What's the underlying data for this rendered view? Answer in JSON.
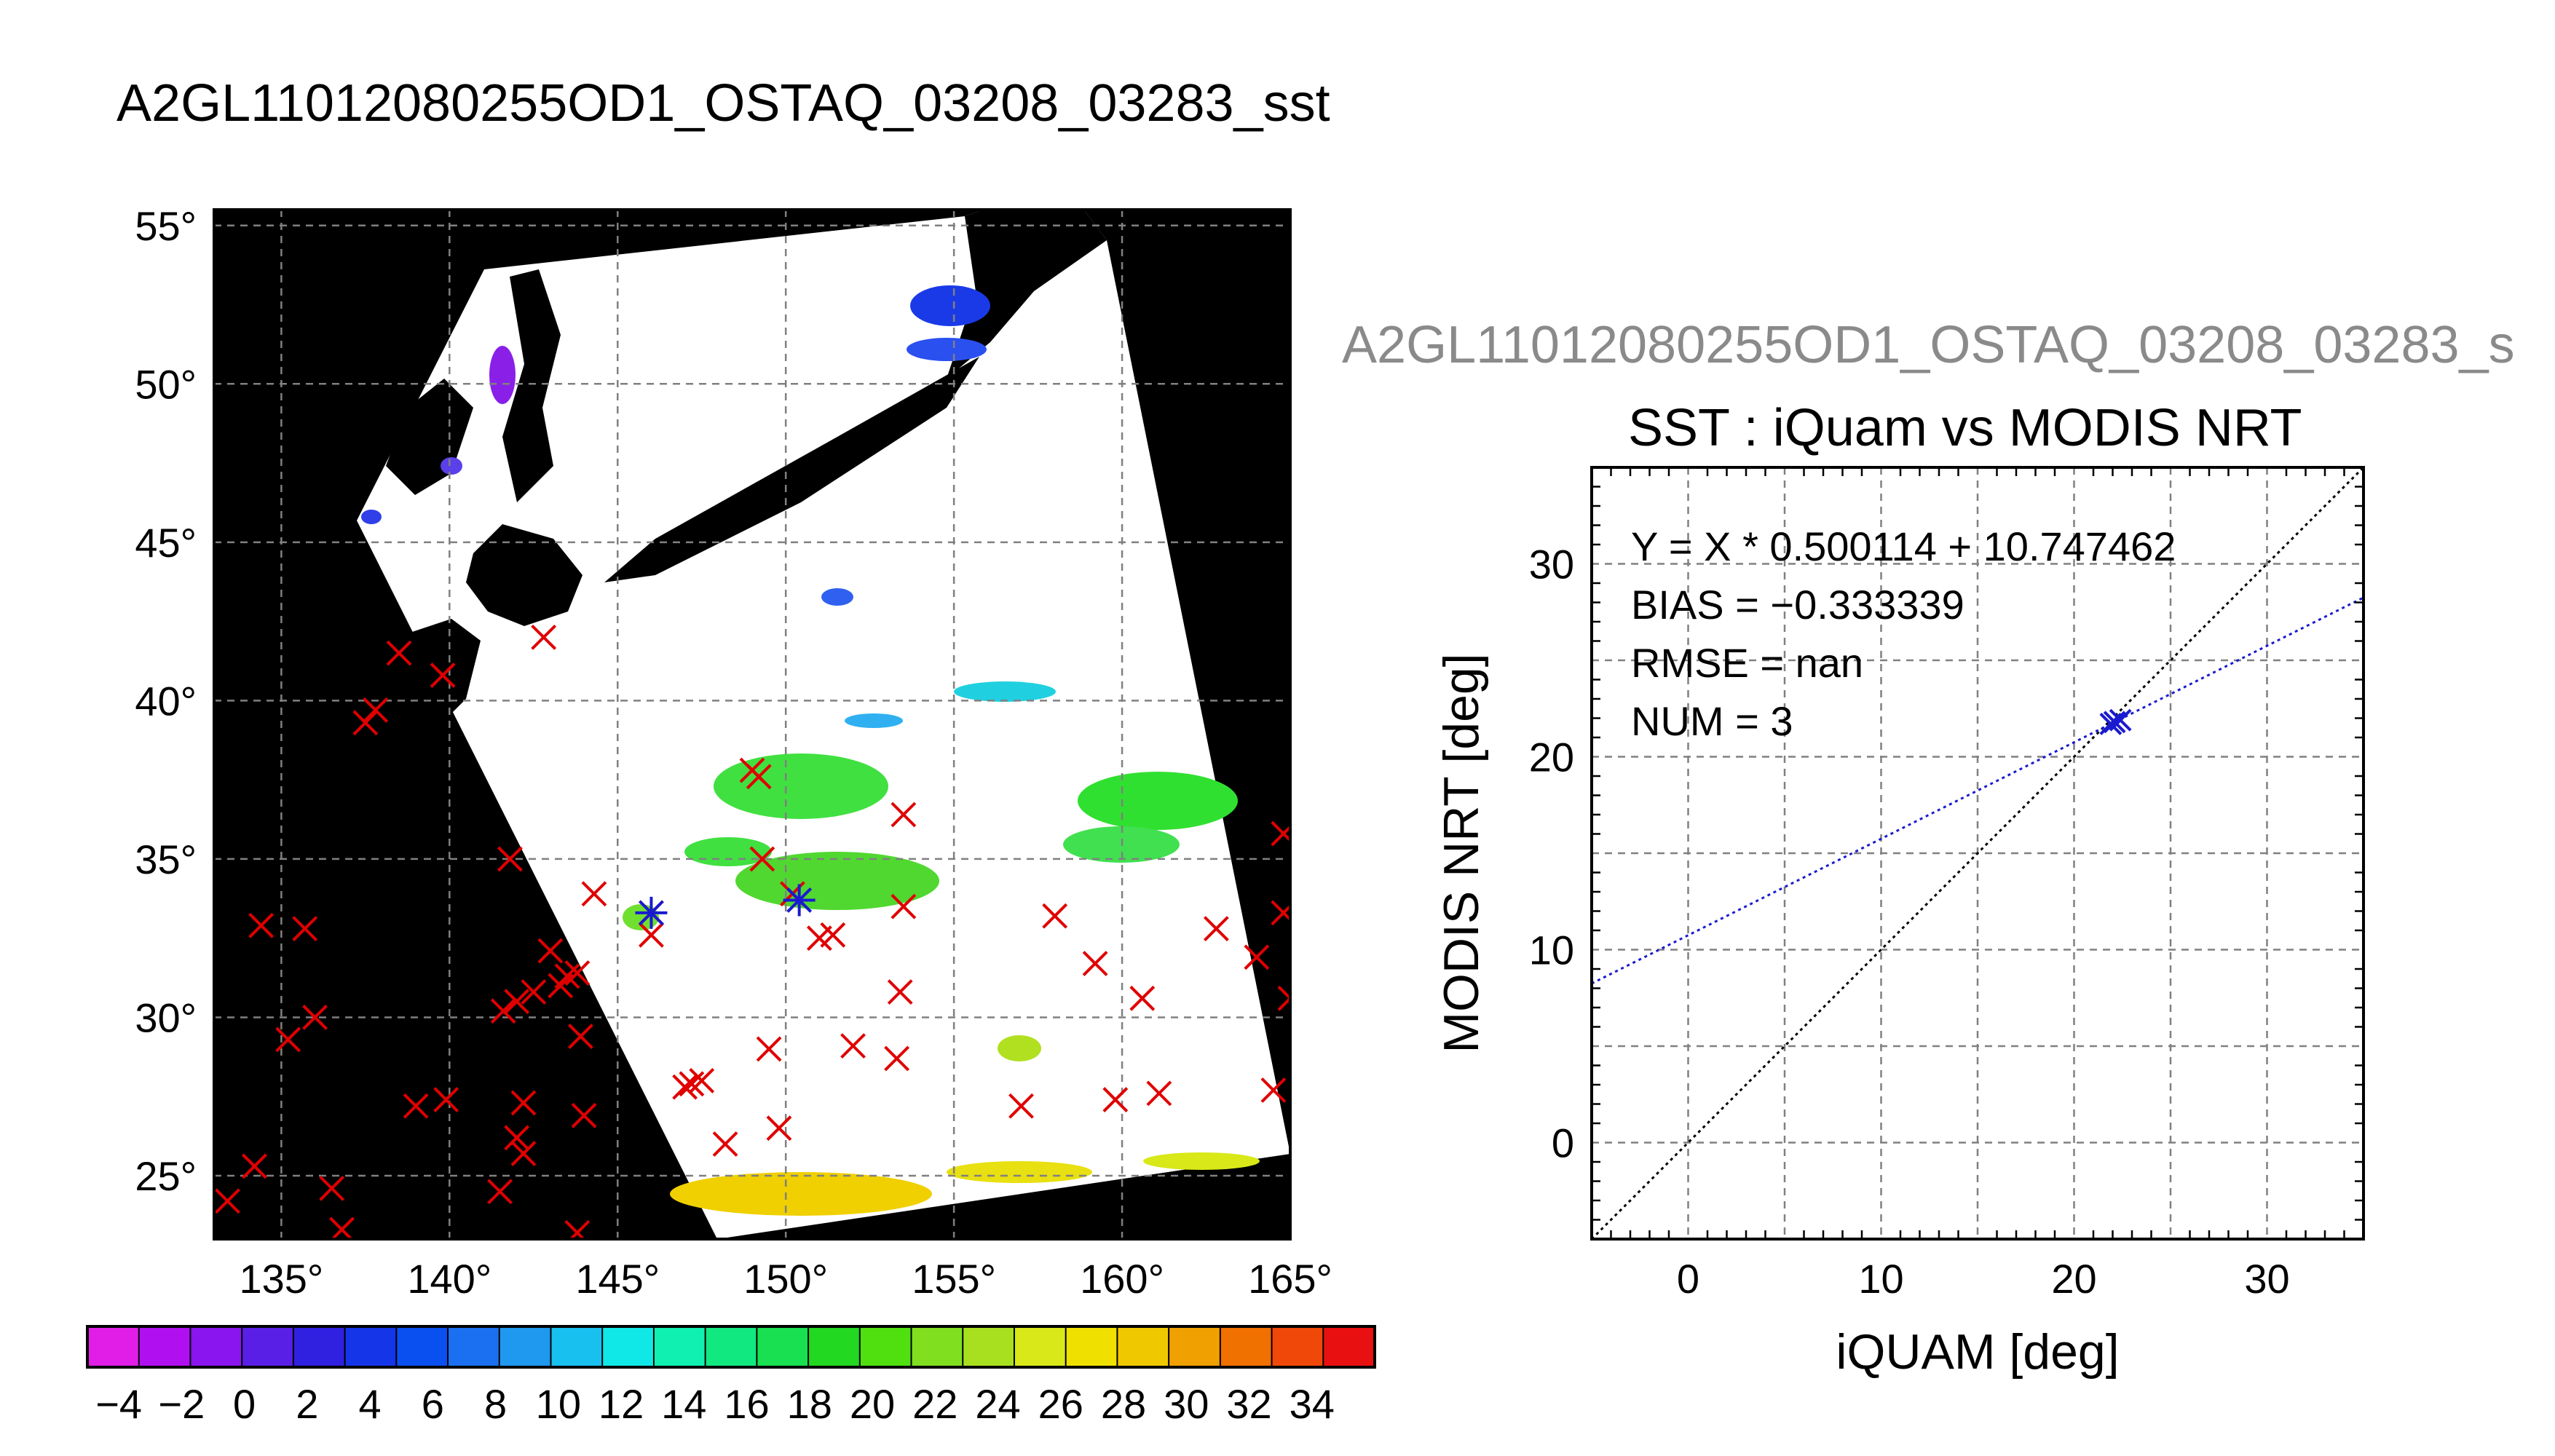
{
  "map": {
    "title": "A2GL11012080255OD1_OSTAQ_03208_03283_sst",
    "lat_labels": [
      "55°",
      "50°",
      "45°",
      "40°",
      "35°",
      "30°",
      "25°"
    ],
    "lon_labels": [
      "135°",
      "140°",
      "145°",
      "150°",
      "155°",
      "160°",
      "165°"
    ],
    "colorbar_labels": [
      "-4",
      "-2",
      "0",
      "2",
      "4",
      "6",
      "8",
      "10",
      "12",
      "14",
      "16",
      "18",
      "20",
      "22",
      "24",
      "26",
      "28",
      "30",
      "32",
      "34"
    ],
    "colorbar_colors": [
      "#e11ee8",
      "#b010f0",
      "#8a15ee",
      "#5a1fe6",
      "#3020e0",
      "#1535e8",
      "#0a50f0",
      "#1a70f0",
      "#1f98f0",
      "#18c0f0",
      "#10e8e8",
      "#10f0b0",
      "#12e880",
      "#18e050",
      "#22d820",
      "#50e010",
      "#80e020",
      "#a8e020",
      "#d8e818",
      "#f0e000",
      "#f0c800",
      "#f0a000",
      "#f07000",
      "#f04808",
      "#e81010"
    ],
    "lat_range": [
      23,
      55.5
    ],
    "lon_range": [
      133,
      165
    ]
  },
  "scatter": {
    "outer_title": "A2GL11012080255OD1_OSTAQ_03208_03283_s",
    "title": "SST : iQuam vs MODIS NRT",
    "annotations": [
      "Y = X * 0.500114 + 10.747462",
      "BIAS = −0.333339",
      "RMSE = nan",
      "NUM = 3"
    ]
  },
  "chart_data": [
    {
      "type": "scatter",
      "title": "A2GL11012080255OD1_OSTAQ_03208_03283_sst",
      "xlabel": "",
      "ylabel": "",
      "xlim": [
        133,
        165
      ],
      "ylim": [
        23,
        55.5
      ],
      "x_ticks": [
        135,
        140,
        145,
        150,
        155,
        160,
        165
      ],
      "y_ticks": [
        25,
        30,
        35,
        40,
        45,
        50,
        55
      ],
      "grid": true,
      "colorbar_ticks": [
        -4,
        -2,
        0,
        2,
        4,
        6,
        8,
        10,
        12,
        14,
        16,
        18,
        20,
        22,
        24,
        26,
        28,
        30,
        32,
        34
      ],
      "series": [
        {
          "name": "",
          "marker": "x",
          "color": "#e00000",
          "points": [
            [
              142.8,
              42.0
            ],
            [
              138.5,
              41.5
            ],
            [
              139.8,
              40.8
            ],
            [
              137.8,
              39.7
            ],
            [
              137.5,
              39.3
            ],
            [
              149.0,
              37.8
            ],
            [
              149.2,
              37.6
            ],
            [
              153.5,
              36.4
            ],
            [
              149.3,
              35.0
            ],
            [
              141.8,
              35.0
            ],
            [
              164.8,
              35.8
            ],
            [
              144.3,
              33.9
            ],
            [
              146.0,
              33.3
            ],
            [
              146.0,
              32.6
            ],
            [
              150.2,
              33.9
            ],
            [
              153.5,
              33.5
            ],
            [
              158.0,
              33.2
            ],
            [
              134.4,
              32.9
            ],
            [
              135.7,
              32.8
            ],
            [
              162.8,
              32.8
            ],
            [
              164.8,
              33.3
            ],
            [
              143.0,
              32.1
            ],
            [
              151.0,
              32.5
            ],
            [
              151.4,
              32.6
            ],
            [
              164.0,
              31.9
            ],
            [
              159.2,
              31.7
            ],
            [
              143.5,
              31.3
            ],
            [
              143.8,
              31.4
            ],
            [
              143.3,
              31.0
            ],
            [
              142.5,
              30.8
            ],
            [
              142.0,
              30.5
            ],
            [
              141.6,
              30.2
            ],
            [
              153.4,
              30.8
            ],
            [
              160.6,
              30.6
            ],
            [
              165.0,
              30.6
            ],
            [
              136.0,
              30.0
            ],
            [
              135.2,
              29.3
            ],
            [
              143.9,
              29.4
            ],
            [
              149.5,
              29.0
            ],
            [
              152.0,
              29.1
            ],
            [
              153.3,
              28.7
            ],
            [
              147.2,
              27.9
            ],
            [
              147.5,
              28.0
            ],
            [
              147.0,
              27.8
            ],
            [
              142.2,
              27.3
            ],
            [
              139.0,
              27.2
            ],
            [
              139.9,
              27.4
            ],
            [
              159.8,
              27.4
            ],
            [
              161.1,
              27.6
            ],
            [
              164.5,
              27.7
            ],
            [
              157.0,
              27.2
            ],
            [
              144.0,
              26.9
            ],
            [
              149.8,
              26.5
            ],
            [
              142.0,
              26.2
            ],
            [
              148.2,
              26.0
            ],
            [
              142.2,
              25.7
            ],
            [
              134.2,
              25.3
            ],
            [
              136.5,
              24.6
            ],
            [
              141.5,
              24.5
            ],
            [
              133.4,
              24.2
            ],
            [
              136.8,
              23.3
            ],
            [
              143.8,
              23.2
            ]
          ]
        },
        {
          "name": "",
          "marker": "x",
          "color": "#1a1ad0",
          "points": [
            [
              146.0,
              33.3
            ],
            [
              150.4,
              33.7
            ]
          ]
        }
      ]
    },
    {
      "type": "scatter",
      "title": "SST : iQuam vs MODIS NRT",
      "xlabel": "iQUAM [deg]",
      "ylabel": "MODIS NRT [deg]",
      "xlim": [
        -5,
        35
      ],
      "ylim": [
        -5,
        35
      ],
      "x_ticks": [
        0,
        10,
        20,
        30
      ],
      "y_ticks": [
        0,
        10,
        20,
        30
      ],
      "grid": true,
      "series": [
        {
          "name": "",
          "marker": "x",
          "color": "#1a1ad0",
          "points": [
            [
              21.9,
              21.7
            ],
            [
              22.1,
              21.8
            ],
            [
              22.4,
              21.9
            ]
          ]
        }
      ],
      "lines": [
        {
          "name": "",
          "color": "#000000",
          "style": "dotted",
          "slope": 1,
          "intercept": 0
        },
        {
          "name": "",
          "color": "#1a1ad0",
          "style": "dotted",
          "slope": 0.500114,
          "intercept": 10.747462
        }
      ]
    }
  ]
}
